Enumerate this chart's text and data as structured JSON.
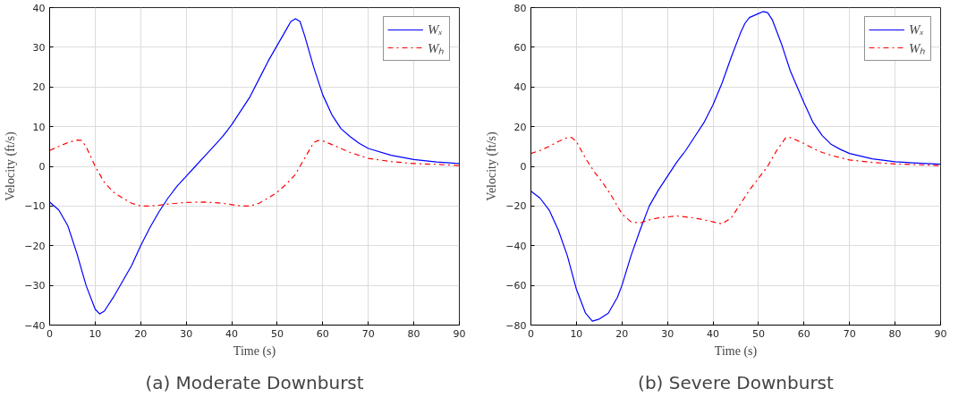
{
  "chart_data": [
    {
      "type": "line",
      "xlabel": "Time (s)",
      "ylabel": "Velocity (ft/s)",
      "annotations": [
        "(a) Moderate Downburst"
      ],
      "xlim": [
        0,
        90
      ],
      "ylim": [
        -40,
        40
      ],
      "xticks": [
        0,
        10,
        20,
        30,
        40,
        50,
        60,
        70,
        80,
        90
      ],
      "yticks": [
        -40,
        -30,
        -20,
        -10,
        0,
        10,
        20,
        30,
        40
      ],
      "grid": true,
      "legend": "top right",
      "series": [
        {
          "name": "Wₓ",
          "color": "#0000ff",
          "line_style": "solid",
          "x": [
            0,
            2,
            4,
            6,
            8,
            10,
            11,
            12,
            14,
            16,
            18,
            20,
            22,
            24,
            26,
            28,
            30,
            32,
            34,
            36,
            38,
            40,
            42,
            44,
            46,
            48,
            50,
            52,
            53,
            54,
            55,
            56,
            58,
            60,
            62,
            64,
            66,
            68,
            70,
            75,
            80,
            85,
            90
          ],
          "values": [
            -9,
            -11,
            -15,
            -22,
            -30,
            -36,
            -37.2,
            -36.5,
            -33,
            -29,
            -25,
            -20,
            -15.5,
            -11.5,
            -8,
            -5,
            -2.5,
            0,
            2.5,
            5,
            7.5,
            10.5,
            14,
            17.5,
            22,
            26.5,
            30.5,
            34.5,
            36.5,
            37.2,
            36.5,
            33,
            25,
            18,
            13,
            9.5,
            7.5,
            5.8,
            4.5,
            2.8,
            1.7,
            1.1,
            0.7
          ]
        },
        {
          "name": "Wₕ",
          "color": "#ff0000",
          "line_style": "dashdot",
          "x": [
            0,
            2,
            4,
            6,
            7,
            8,
            10,
            12,
            14,
            16,
            18,
            20,
            22,
            24,
            26,
            30,
            34,
            38,
            42,
            44,
            46,
            48,
            50,
            52,
            54,
            56,
            58,
            59,
            60,
            62,
            64,
            66,
            70,
            75,
            80,
            85,
            90
          ],
          "values": [
            4,
            5,
            6,
            6.6,
            6.5,
            5,
            0,
            -4,
            -6.5,
            -8,
            -9.3,
            -10,
            -10,
            -9.8,
            -9.5,
            -9.1,
            -9,
            -9.3,
            -10,
            -10,
            -9.3,
            -8,
            -6.5,
            -4.5,
            -2,
            2,
            6,
            6.5,
            6.4,
            5.5,
            4.5,
            3.5,
            2,
            1.2,
            0.7,
            0.5,
            0.2
          ]
        }
      ]
    },
    {
      "type": "line",
      "xlabel": "Time (s)",
      "ylabel": "Velocity (ft/s)",
      "annotations": [
        "(b) Severe Downburst"
      ],
      "xlim": [
        0,
        90
      ],
      "ylim": [
        -80,
        80
      ],
      "xticks": [
        0,
        10,
        20,
        30,
        40,
        50,
        60,
        70,
        80,
        90
      ],
      "yticks": [
        -80,
        -60,
        -40,
        -20,
        0,
        20,
        40,
        60,
        80
      ],
      "grid": true,
      "legend": "top right",
      "series": [
        {
          "name": "Wₓ",
          "color": "#0000ff",
          "line_style": "solid",
          "x": [
            0,
            2,
            4,
            6,
            8,
            10,
            12,
            13.5,
            15,
            17,
            19,
            20,
            22,
            24,
            26,
            28,
            30,
            32,
            34,
            36,
            38,
            40,
            42,
            44,
            46,
            47,
            48,
            50,
            51,
            52,
            53,
            55,
            57,
            60,
            62,
            64,
            66,
            68,
            70,
            75,
            80,
            85,
            90
          ],
          "values": [
            -12.5,
            -16,
            -22,
            -32,
            -45,
            -62,
            -74,
            -78,
            -77,
            -74,
            -66,
            -60,
            -45,
            -32,
            -20,
            -12,
            -5,
            2,
            8,
            15,
            22,
            31,
            42,
            55,
            67,
            72,
            75,
            77,
            78,
            77.5,
            74,
            62,
            48,
            32,
            22,
            15.5,
            11,
            8.5,
            6.5,
            3.8,
            2.3,
            1.6,
            1.1
          ]
        },
        {
          "name": "Wₕ",
          "color": "#ff0000",
          "line_style": "dashdot",
          "x": [
            0,
            2,
            4,
            6,
            8,
            9,
            10,
            12,
            14,
            16,
            18,
            20,
            22,
            24,
            26,
            28,
            32,
            36,
            40,
            42,
            44,
            46,
            48,
            50,
            52,
            54,
            56,
            57,
            58,
            60,
            62,
            64,
            66,
            70,
            75,
            80,
            85,
            90
          ],
          "values": [
            6.5,
            8,
            10,
            12.5,
            14.5,
            14.5,
            12.5,
            4,
            -3,
            -9,
            -16,
            -24,
            -28,
            -28.5,
            -27,
            -26,
            -25,
            -26,
            -28,
            -29,
            -26,
            -19,
            -12,
            -6,
            0,
            8,
            14.5,
            14.5,
            13.5,
            11.5,
            9,
            7,
            5.5,
            3.2,
            2,
            1.2,
            0.8,
            0.4
          ]
        }
      ]
    }
  ]
}
